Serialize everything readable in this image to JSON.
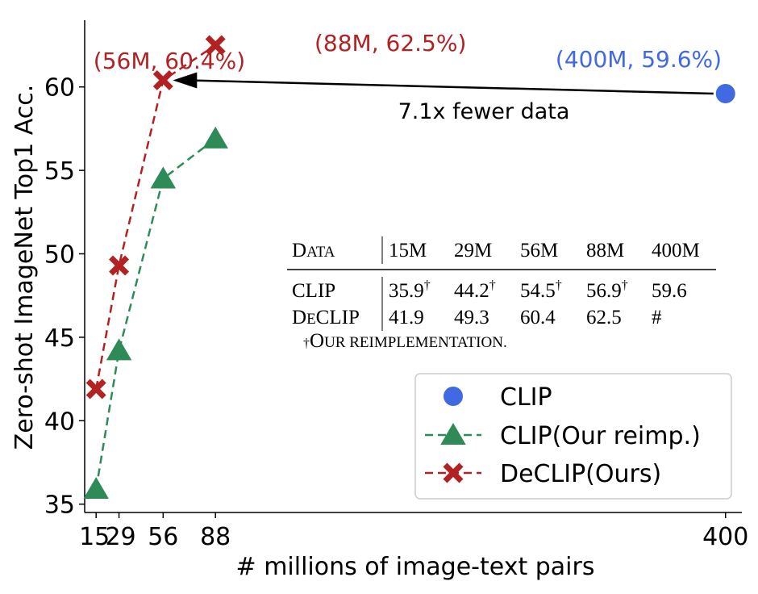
{
  "chart_data": {
    "type": "line",
    "xlabel": "# millions of image-text pairs",
    "ylabel": "Zero-shot ImageNet Top1 Acc.",
    "xlim": [
      8,
      410
    ],
    "ylim": [
      34.5,
      64
    ],
    "xticks": [
      15,
      29,
      56,
      88,
      400
    ],
    "yticks": [
      35,
      40,
      45,
      50,
      55,
      60
    ],
    "series": [
      {
        "name": "CLIP",
        "marker": "circle",
        "color": "#4169e1",
        "line": "none",
        "x": [
          400
        ],
        "y": [
          59.6
        ]
      },
      {
        "name": "CLIP(Our reimp.)",
        "marker": "triangle",
        "color": "#2e8b57",
        "line": "dashed",
        "x": [
          15,
          29,
          56,
          88
        ],
        "y": [
          35.9,
          44.2,
          54.5,
          56.9
        ]
      },
      {
        "name": "DeCLIP(Ours)",
        "marker": "x",
        "color": "#b22222",
        "line": "dashed",
        "x": [
          15,
          29,
          56,
          88
        ],
        "y": [
          41.9,
          49.3,
          60.4,
          62.5
        ]
      }
    ],
    "annotations": [
      {
        "text": "(56M, 60.4%)",
        "color": "#b22222",
        "at": [
          56,
          60.4
        ]
      },
      {
        "text": "(88M, 62.5%)",
        "color": "#b22222",
        "at": [
          88,
          62.5
        ]
      },
      {
        "text": "(400M, 59.6%)",
        "color": "#4169e1",
        "at": [
          400,
          59.6
        ]
      },
      {
        "text": "7.1x fewer data",
        "color": "#000000",
        "arrow_from": [
          400,
          59.6
        ],
        "arrow_to": [
          56,
          60.4
        ]
      }
    ],
    "legend_position": "lower-right",
    "inset_table": {
      "header": [
        "Data",
        "15M",
        "29M",
        "56M",
        "88M",
        "400M"
      ],
      "rows": [
        [
          "CLIP",
          "35.9†",
          "44.2†",
          "54.5†",
          "56.9†",
          "59.6"
        ],
        [
          "DeCLIP",
          "41.9",
          "49.3",
          "60.4",
          "62.5",
          "#"
        ]
      ],
      "footnote": "† Our reimplementation."
    }
  }
}
